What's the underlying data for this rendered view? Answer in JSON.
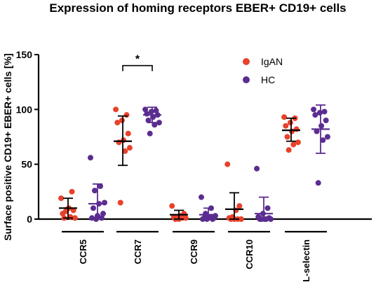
{
  "chart_data": {
    "type": "scatter",
    "title": "Expression of homing receptors EBER+ CD19+ cells",
    "ylabel": "Surface positive CD19+ EBER+ cells [%]",
    "xlabel": "",
    "ylim": [
      0,
      150
    ],
    "yticks": [
      0,
      50,
      100,
      150
    ],
    "categories": [
      "CCR5",
      "CCR7",
      "CCR9",
      "CCR10",
      "L-selectin"
    ],
    "legend_position": "top-right",
    "grid": false,
    "series": [
      {
        "name": "IgAN",
        "color": "#e8412a",
        "points": [
          [
            19,
            25,
            9,
            5,
            8,
            10,
            1,
            1,
            2,
            7
          ],
          [
            100,
            95,
            90,
            88,
            78,
            72,
            70,
            65,
            62,
            15
          ],
          [
            12,
            5,
            3,
            2,
            2,
            1,
            1,
            0,
            0
          ],
          [
            50,
            12,
            8,
            2,
            1,
            0,
            0,
            0,
            0
          ],
          [
            93,
            92,
            88,
            85,
            82,
            80,
            75,
            70,
            68,
            63
          ]
        ],
        "mean": [
          10,
          71,
          4,
          9,
          81
        ],
        "sd_low": [
          1,
          49,
          0,
          0,
          71
        ],
        "sd_high": [
          19,
          94,
          8,
          24,
          92
        ]
      },
      {
        "name": "HC",
        "color": "#5b2d90",
        "points": [
          [
            56,
            30,
            26,
            15,
            14,
            10,
            5,
            3,
            1,
            1,
            0
          ],
          [
            100,
            99,
            98,
            96,
            95,
            93,
            90,
            88,
            86,
            78
          ],
          [
            20,
            10,
            5,
            3,
            2,
            1,
            1,
            1,
            0,
            0,
            0
          ],
          [
            46,
            10,
            5,
            2,
            1,
            0,
            0,
            0,
            0,
            0
          ],
          [
            100,
            98,
            97,
            95,
            90,
            85,
            80,
            75,
            72,
            33
          ]
        ],
        "mean": [
          14,
          95,
          4,
          5,
          82
        ],
        "sd_low": [
          0,
          88,
          0,
          0,
          60
        ],
        "sd_high": [
          32,
          102,
          10,
          20,
          104
        ]
      }
    ],
    "annotations": [
      {
        "category": "CCR7",
        "text": "*",
        "y": 140
      }
    ]
  }
}
